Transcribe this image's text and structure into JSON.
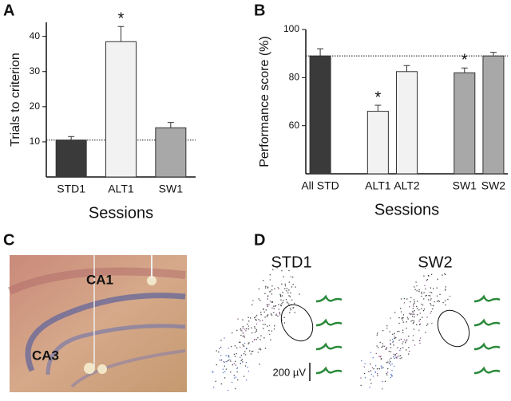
{
  "panels": [
    "A",
    "B",
    "C",
    "D"
  ],
  "chart_data": [
    {
      "type": "bar",
      "ylabel": "Trials to criterion",
      "xlabel": "Sessions",
      "categories": [
        "STD1",
        "ALT1",
        "SW1"
      ],
      "values": [
        10.5,
        38.5,
        14
      ],
      "errors": [
        1,
        4.3,
        1.5
      ],
      "colors": [
        "#3a3a3a",
        "#f2f2f2",
        "#a8a8a8"
      ],
      "annotations": [
        null,
        "*",
        null
      ],
      "reference_line": 10.5,
      "ylim": [
        0,
        44
      ],
      "yticks": [
        10,
        20,
        30,
        40
      ]
    },
    {
      "type": "bar",
      "ylabel": "Performance score (%)",
      "xlabel": "Sessions",
      "categories": [
        "All STD",
        null,
        "ALT1",
        "ALT2",
        null,
        "SW1",
        "SW2"
      ],
      "values": [
        89,
        null,
        66,
        82.5,
        null,
        82,
        89
      ],
      "errors": [
        3,
        null,
        2.5,
        2.5,
        null,
        2,
        1.5
      ],
      "colors": [
        "#3a3a3a",
        null,
        "#f2f2f2",
        "#f2f2f2",
        null,
        "#a8a8a8",
        "#a8a8a8"
      ],
      "annotations": [
        null,
        null,
        "*",
        null,
        null,
        "*",
        null
      ],
      "reference_line": 89,
      "ylim": [
        40,
        100
      ],
      "yticks": [
        60,
        80,
        100
      ]
    }
  ],
  "image_c": {
    "labels": [
      "CA1",
      "CA3"
    ]
  },
  "image_d": {
    "titles": [
      "STD1",
      "SW2"
    ],
    "scale": "200 µV"
  }
}
